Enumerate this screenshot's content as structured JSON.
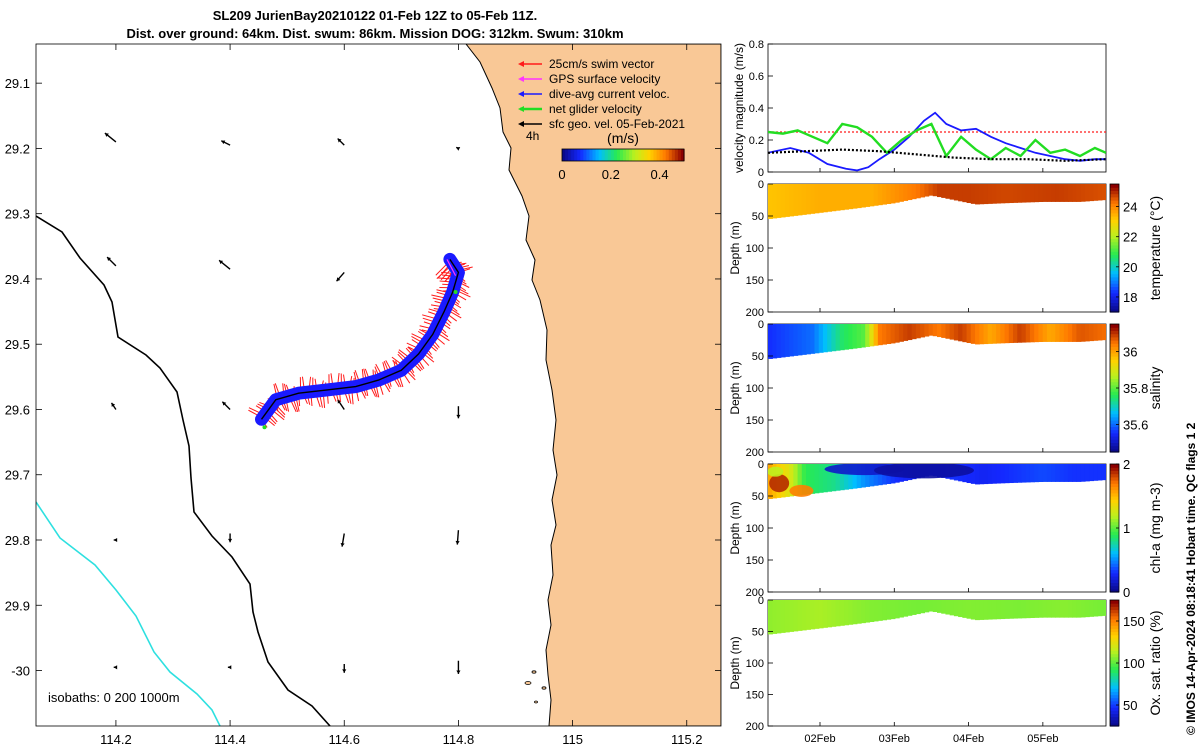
{
  "header": {
    "title_line1": "SL209 JurienBay20210122 01-Feb 12Z to 05-Feb 11Z.",
    "title_line2": "Dist. over ground: 64km. Dist. swum: 86km. Mission DOG: 312km. Swum: 310km"
  },
  "credit": "© IMOS 14-Apr-2024 08:18:41 Hobart time. QC flags 1  2",
  "colors": {
    "land": "#f9c896",
    "coast": "#000000",
    "isobath_shallow": "#000000",
    "isobath_deep": "#2ee0e0",
    "swim": "#ff1a1a",
    "gps": "#ff33ff",
    "dive_avg": "#1a1aff",
    "net": "#22dd22",
    "geo": "#000000"
  },
  "chart_data": [
    {
      "type": "map",
      "x": {
        "ticks": [
          114.2,
          114.4,
          114.6,
          114.8,
          115,
          115.2
        ],
        "tick_labels": [
          "114.2",
          "114.4",
          "114.6",
          "114.8",
          "115",
          "115.2"
        ],
        "lim": [
          114.06,
          115.26
        ]
      },
      "y": {
        "ticks": [
          -29.1,
          -29.2,
          -29.3,
          -29.4,
          -29.5,
          -29.6,
          -29.7,
          -29.8,
          -29.9,
          -30
        ],
        "tick_labels": [
          "29.1",
          "29.2",
          "29.3",
          "29.4",
          "29.5",
          "29.6",
          "29.7",
          "29.8",
          "29.9",
          "-30"
        ],
        "lim": [
          -30.085,
          -29.04
        ]
      },
      "legend": {
        "position": "top-right",
        "items": [
          {
            "label": "25cm/s swim vector",
            "color_key": "swim"
          },
          {
            "label": "GPS surface velocity",
            "color_key": "gps"
          },
          {
            "label": "dive-avg current veloc.",
            "color_key": "dive_avg"
          },
          {
            "label": "net glider velocity",
            "color_key": "net"
          },
          {
            "label": "sfc geo. vel. 05-Feb-2021",
            "color_key": "geo"
          }
        ],
        "note": "4h"
      },
      "colorbar": {
        "label": "(m/s)",
        "ticks": [
          0,
          0.2,
          0.4
        ],
        "tick_labels": [
          "0",
          "0.2",
          "0.4"
        ],
        "range": [
          0,
          0.5
        ]
      },
      "isobath_label": "isobaths: 0   200  1000m",
      "track": [
        [
          114.455,
          -29.615
        ],
        [
          114.48,
          -29.585
        ],
        [
          114.52,
          -29.575
        ],
        [
          114.57,
          -29.57
        ],
        [
          114.62,
          -29.565
        ],
        [
          114.66,
          -29.555
        ],
        [
          114.7,
          -29.54
        ],
        [
          114.73,
          -29.515
        ],
        [
          114.755,
          -29.485
        ],
        [
          114.775,
          -29.45
        ],
        [
          114.79,
          -29.42
        ],
        [
          114.8,
          -29.39
        ],
        [
          114.785,
          -29.37
        ]
      ],
      "geo_vectors": [
        {
          "lon": 114.2,
          "lat": -29.19,
          "u": -0.5,
          "v": 0.4
        },
        {
          "lon": 114.4,
          "lat": -29.195,
          "u": -0.4,
          "v": 0.2
        },
        {
          "lon": 114.6,
          "lat": -29.195,
          "u": -0.3,
          "v": 0.3
        },
        {
          "lon": 114.8,
          "lat": -29.2,
          "u": -0.1,
          "v": 0.05
        },
        {
          "lon": 114.2,
          "lat": -29.38,
          "u": -0.4,
          "v": 0.4
        },
        {
          "lon": 114.4,
          "lat": -29.385,
          "u": -0.5,
          "v": 0.4
        },
        {
          "lon": 114.6,
          "lat": -29.39,
          "u": -0.35,
          "v": -0.4
        },
        {
          "lon": 114.8,
          "lat": -29.38,
          "u": -0.2,
          "v": -0.4
        },
        {
          "lon": 114.2,
          "lat": -29.6,
          "u": -0.2,
          "v": 0.3
        },
        {
          "lon": 114.4,
          "lat": -29.6,
          "u": -0.35,
          "v": 0.35
        },
        {
          "lon": 114.6,
          "lat": -29.6,
          "u": -0.3,
          "v": 0.45
        },
        {
          "lon": 114.8,
          "lat": -29.595,
          "u": 0,
          "v": -0.55
        },
        {
          "lon": 114.2,
          "lat": -29.8,
          "u": -0.1,
          "v": 0
        },
        {
          "lon": 114.4,
          "lat": -29.79,
          "u": 0,
          "v": -0.4
        },
        {
          "lon": 114.6,
          "lat": -29.79,
          "u": -0.1,
          "v": -0.6
        },
        {
          "lon": 114.8,
          "lat": -29.785,
          "u": -0.05,
          "v": -0.65
        },
        {
          "lon": 114.2,
          "lat": -29.995,
          "u": -0.1,
          "v": 0
        },
        {
          "lon": 114.4,
          "lat": -29.995,
          "u": -0.1,
          "v": 0
        },
        {
          "lon": 114.6,
          "lat": -29.99,
          "u": 0,
          "v": -0.4
        },
        {
          "lon": 114.8,
          "lat": -29.985,
          "u": 0,
          "v": -0.6
        }
      ]
    },
    {
      "type": "line",
      "ylabel": "velocity magnitude (m/s)",
      "ylim": [
        0,
        0.8
      ],
      "y_ticks": [
        0,
        0.2,
        0.4,
        0.6,
        0.8
      ],
      "y_tick_labels": [
        "0",
        "0.2",
        "0.4",
        "0.6",
        "0.8"
      ],
      "xlim": [
        1.3,
        5.85
      ],
      "series": [
        {
          "color_key": "swim",
          "style": "dotted",
          "x": [
            1.3,
            5.85
          ],
          "y": [
            0.25,
            0.25
          ]
        },
        {
          "color_key": "dive_avg",
          "style": "solid",
          "x": [
            1.3,
            1.6,
            1.85,
            2.1,
            2.35,
            2.5,
            2.65,
            2.8,
            3.0,
            3.2,
            3.4,
            3.55,
            3.7,
            3.9,
            4.1,
            4.3,
            4.5,
            4.7,
            4.9,
            5.1,
            5.3,
            5.5,
            5.7,
            5.85
          ],
          "y": [
            0.12,
            0.15,
            0.12,
            0.05,
            0.02,
            0.01,
            0.03,
            0.08,
            0.14,
            0.22,
            0.32,
            0.37,
            0.3,
            0.26,
            0.27,
            0.22,
            0.18,
            0.15,
            0.12,
            0.1,
            0.08,
            0.07,
            0.08,
            0.08
          ]
        },
        {
          "color_key": "net",
          "style": "solid",
          "x": [
            1.3,
            1.5,
            1.7,
            1.9,
            2.1,
            2.3,
            2.5,
            2.7,
            2.9,
            3.1,
            3.3,
            3.5,
            3.7,
            3.9,
            4.1,
            4.3,
            4.5,
            4.7,
            4.9,
            5.1,
            5.3,
            5.5,
            5.7,
            5.85
          ],
          "y": [
            0.25,
            0.24,
            0.26,
            0.22,
            0.18,
            0.3,
            0.28,
            0.22,
            0.12,
            0.2,
            0.26,
            0.3,
            0.1,
            0.22,
            0.14,
            0.08,
            0.15,
            0.1,
            0.2,
            0.12,
            0.14,
            0.1,
            0.15,
            0.12
          ]
        },
        {
          "color_key": "geo",
          "style": "dotted",
          "x": [
            1.3,
            1.8,
            2.3,
            2.8,
            3.3,
            3.8,
            4.3,
            4.8,
            5.3,
            5.85
          ],
          "y": [
            0.12,
            0.13,
            0.14,
            0.13,
            0.11,
            0.09,
            0.08,
            0.08,
            0.07,
            0.08
          ]
        }
      ]
    },
    {
      "type": "heatmap",
      "ylabel": "Depth (m)",
      "clabel": "temperature (°C)",
      "ylim": [
        200,
        0
      ],
      "y_ticks": [
        0,
        50,
        100,
        150,
        200
      ],
      "y_tick_labels": [
        "0",
        "50",
        "100",
        "150",
        "200"
      ],
      "crange": [
        17,
        25.5
      ],
      "c_ticks": [
        18,
        20,
        22,
        24
      ],
      "c_tick_labels": [
        "18",
        "20",
        "22",
        "24"
      ],
      "bottom_depth": {
        "x": [
          1.3,
          1.8,
          2.5,
          3.0,
          3.5,
          4.1,
          4.5,
          5.0,
          5.5,
          5.85
        ],
        "y": [
          55,
          48,
          38,
          30,
          18,
          32,
          30,
          28,
          28,
          25
        ]
      },
      "values": {
        "x": [
          1.3,
          2.0,
          2.7,
          3.3,
          3.6,
          4.0,
          4.5,
          5.2,
          5.85
        ],
        "c": [
          23.3,
          23.6,
          23.6,
          24.3,
          24.9,
          24.9,
          24.8,
          24.9,
          24.7
        ]
      }
    },
    {
      "type": "heatmap",
      "ylabel": "Depth (m)",
      "clabel": "salinity",
      "ylim": [
        200,
        0
      ],
      "y_ticks": [
        0,
        50,
        100,
        150,
        200
      ],
      "y_tick_labels": [
        "0",
        "50",
        "100",
        "150",
        "200"
      ],
      "crange": [
        35.45,
        36.15
      ],
      "c_ticks": [
        35.6,
        35.8,
        36
      ],
      "c_tick_labels": [
        "35.6",
        "35.8",
        "36"
      ],
      "bottom_depth": {
        "x": [
          1.3,
          1.8,
          2.5,
          3.0,
          3.5,
          4.1,
          4.5,
          5.0,
          5.5,
          5.85
        ],
        "y": [
          55,
          48,
          38,
          30,
          18,
          32,
          30,
          28,
          28,
          25
        ]
      },
      "values": {
        "x": [
          1.3,
          1.9,
          2.3,
          2.6,
          2.8,
          3.2,
          3.6,
          3.9,
          4.3,
          4.7,
          5.1,
          5.5,
          5.85
        ],
        "c": [
          35.55,
          35.6,
          35.75,
          35.8,
          36.05,
          36.1,
          36.05,
          36.1,
          36.0,
          36.1,
          36.0,
          36.08,
          36.06
        ]
      }
    },
    {
      "type": "heatmap",
      "ylabel": "Depth (m)",
      "clabel": "chl-a (mg m-3)",
      "ylim": [
        200,
        0
      ],
      "y_ticks": [
        0,
        50,
        100,
        150,
        200
      ],
      "y_tick_labels": [
        "0",
        "50",
        "100",
        "150",
        "200"
      ],
      "crange": [
        0,
        2
      ],
      "c_ticks": [
        0,
        1,
        2
      ],
      "c_tick_labels": [
        "0",
        "1",
        "2"
      ],
      "bottom_depth": {
        "x": [
          1.3,
          1.8,
          2.5,
          3.0,
          3.5,
          4.1,
          4.5,
          5.0,
          5.5,
          5.85
        ],
        "y": [
          55,
          48,
          38,
          30,
          18,
          32,
          30,
          28,
          28,
          25
        ]
      },
      "values": {
        "x": [
          1.3,
          1.6,
          1.8,
          2.2,
          2.6,
          3.0,
          3.4,
          3.8,
          4.2,
          4.6,
          5.0,
          5.4,
          5.85
        ],
        "c": [
          1.6,
          1.3,
          0.9,
          0.8,
          0.5,
          0.3,
          0.2,
          0.3,
          0.25,
          0.3,
          0.35,
          0.3,
          0.3
        ]
      }
    },
    {
      "type": "heatmap",
      "ylabel": "Depth (m)",
      "clabel": "Ox. sat. ratio (%)",
      "ylim": [
        200,
        0
      ],
      "y_ticks": [
        0,
        50,
        100,
        150,
        200
      ],
      "y_tick_labels": [
        "0",
        "50",
        "100",
        "150",
        "200"
      ],
      "crange": [
        25,
        175
      ],
      "c_ticks": [
        50,
        100,
        150
      ],
      "c_tick_labels": [
        "50",
        "100",
        "150"
      ],
      "bottom_depth": {
        "x": [
          1.3,
          1.8,
          2.5,
          3.0,
          3.5,
          4.1,
          4.5,
          5.0,
          5.5,
          5.85
        ],
        "y": [
          55,
          48,
          38,
          30,
          18,
          32,
          30,
          28,
          28,
          25
        ]
      },
      "values": {
        "x": [
          1.3,
          2.0,
          2.7,
          3.3,
          4.0,
          4.7,
          5.3,
          5.85
        ],
        "c": [
          108,
          112,
          106,
          104,
          106,
          105,
          107,
          104
        ]
      }
    }
  ],
  "time_axis": {
    "ticks": [
      2,
      3,
      4,
      5
    ],
    "tick_labels": [
      "02Feb",
      "03Feb",
      "04Feb",
      "05Feb"
    ]
  }
}
